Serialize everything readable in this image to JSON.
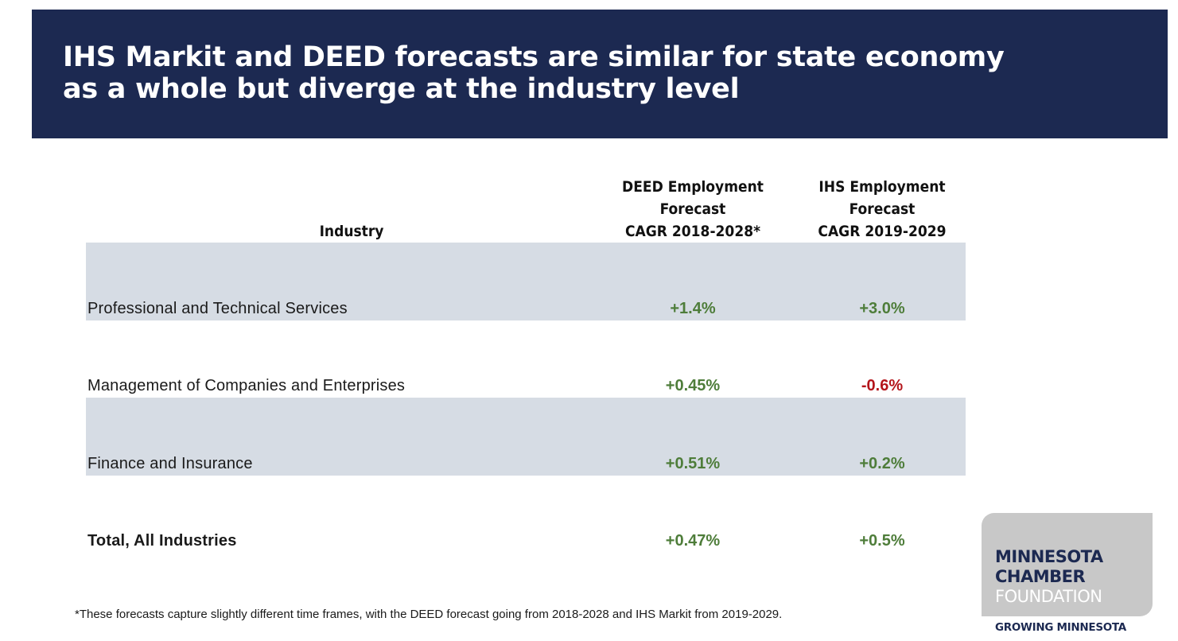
{
  "slide": {
    "title": "IHS Markit and DEED forecasts are similar for state economy\nas a whole but diverge at the industry level",
    "colors": {
      "header_background": "#1c2951",
      "row_shade": "#d6dce4",
      "positive": "#4e7d3a",
      "negative": "#b4151b",
      "logo_background": "#c8c8c8"
    }
  },
  "table": {
    "headers": {
      "industry": "Industry",
      "deed": "DEED Employment\nForecast\nCAGR 2018-2028*",
      "ihs": "IHS Employment\nForecast\nCAGR 2019-2029"
    },
    "rows": [
      {
        "industry": "Professional  and Technical Services",
        "deed": "+1.4%",
        "ihs": "+3.0%",
        "deed_sign": "positive",
        "ihs_sign": "positive",
        "shaded": true,
        "bold": false
      },
      {
        "industry": "Management  of Companies and Enterprises",
        "deed": "+0.45%",
        "ihs": "-0.6%",
        "deed_sign": "positive",
        "ihs_sign": "negative",
        "shaded": false,
        "bold": false
      },
      {
        "industry": "Finance and Insurance",
        "deed": "+0.51%",
        "ihs": "+0.2%",
        "deed_sign": "positive",
        "ihs_sign": "positive",
        "shaded": true,
        "bold": false
      },
      {
        "industry": "Total, All Industries",
        "deed": "+0.47%",
        "ihs": "+0.5%",
        "deed_sign": "positive",
        "ihs_sign": "positive",
        "shaded": false,
        "bold": true
      }
    ]
  },
  "footnote": "*These forecasts capture slightly different time frames, with  the DEED forecast going from  2018-2028  and IHS Markit  from  2019-2029.",
  "logo": {
    "line1": "MINNESOTA",
    "line2": "CHAMBER",
    "line3": "FOUNDATION",
    "tagline": "GROWING MINNESOTA"
  }
}
